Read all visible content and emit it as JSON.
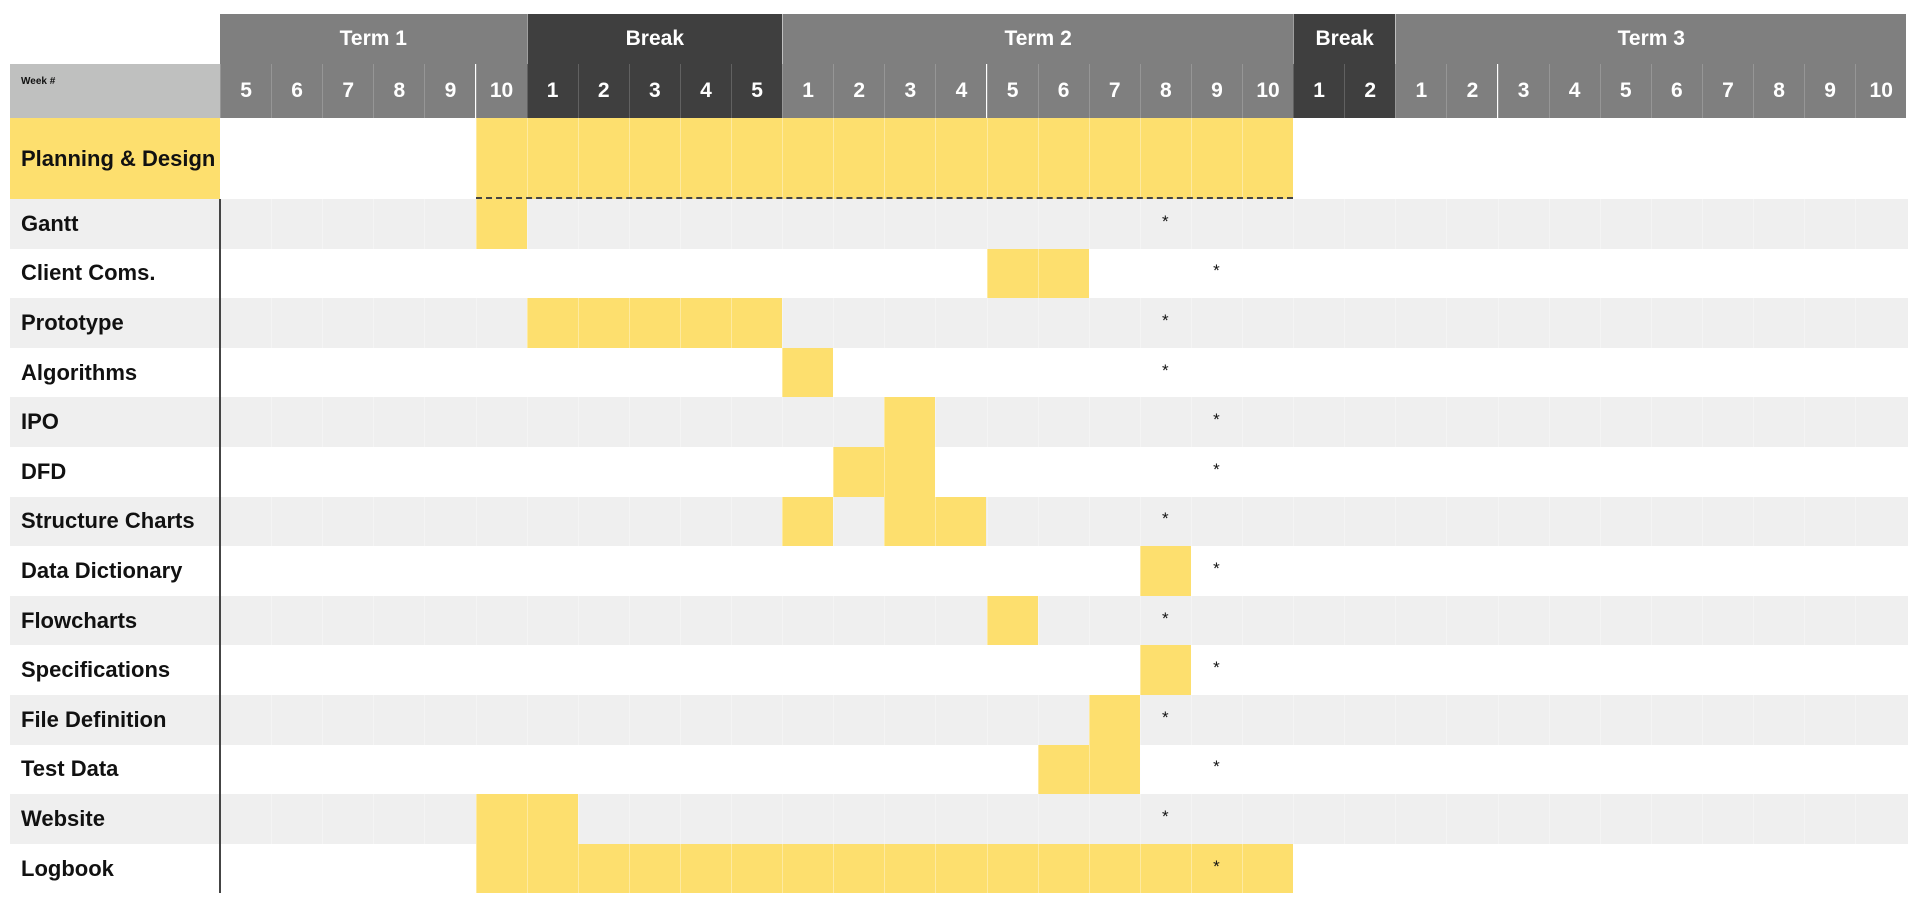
{
  "colors": {
    "term": "#7f7f7f",
    "break": "#3f3f3f",
    "week_label_bg": "#bfc0bf",
    "task_fill": "#fddf6e",
    "row_alt": "#efefef",
    "row_base": "#ffffff"
  },
  "header": {
    "week_label": "Week #",
    "periods": [
      {
        "name": "Term 1",
        "kind": "term",
        "weeks": [
          "5",
          "6",
          "7",
          "8",
          "9",
          "10"
        ]
      },
      {
        "name": "Break",
        "kind": "break",
        "weeks": [
          "1",
          "2",
          "3",
          "4",
          "5"
        ]
      },
      {
        "name": "Term 2",
        "kind": "term",
        "weeks": [
          "1",
          "2",
          "3",
          "4",
          "5",
          "6",
          "7",
          "8",
          "9",
          "10"
        ]
      },
      {
        "name": "Break",
        "kind": "break",
        "weeks": [
          "1",
          "2"
        ]
      },
      {
        "name": "Term 3",
        "kind": "term",
        "weeks": [
          "1",
          "2",
          "3",
          "4",
          "5",
          "6",
          "7",
          "8",
          "9",
          "10"
        ]
      }
    ]
  },
  "chart_data": {
    "type": "gantt",
    "star_marker": "*",
    "tasks": [
      {
        "name": "Planning & Design",
        "spans": [
          [
            5,
            20
          ]
        ],
        "star": null
      },
      {
        "name": "Gantt",
        "spans": [
          [
            5,
            5
          ]
        ],
        "star": 18
      },
      {
        "name": "Client Coms.",
        "spans": [
          [
            15,
            16
          ]
        ],
        "star": 19
      },
      {
        "name": "Prototype",
        "spans": [
          [
            6,
            10
          ]
        ],
        "star": 18
      },
      {
        "name": "Algorithms",
        "spans": [
          [
            11,
            11
          ]
        ],
        "star": 18
      },
      {
        "name": "IPO",
        "spans": [
          [
            13,
            13
          ]
        ],
        "star": 19
      },
      {
        "name": "DFD",
        "spans": [
          [
            12,
            13
          ]
        ],
        "star": 19
      },
      {
        "name": "Structure Charts",
        "spans": [
          [
            11,
            11
          ],
          [
            13,
            14
          ]
        ],
        "star": 18
      },
      {
        "name": "Data Dictionary",
        "spans": [
          [
            18,
            18
          ]
        ],
        "star": 19
      },
      {
        "name": "Flowcharts",
        "spans": [
          [
            15,
            15
          ]
        ],
        "star": 18
      },
      {
        "name": "Specifications",
        "spans": [
          [
            18,
            18
          ]
        ],
        "star": 19
      },
      {
        "name": "File Definition",
        "spans": [
          [
            17,
            17
          ]
        ],
        "star": 18
      },
      {
        "name": "Test Data",
        "spans": [
          [
            16,
            17
          ]
        ],
        "star": 19
      },
      {
        "name": "Website",
        "spans": [
          [
            5,
            6
          ]
        ],
        "star": 18
      },
      {
        "name": "Logbook",
        "spans": [
          [
            5,
            20
          ]
        ],
        "star": 19
      }
    ]
  }
}
